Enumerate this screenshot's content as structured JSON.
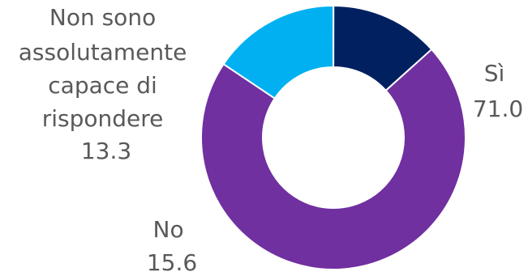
{
  "chart_data": {
    "type": "pie",
    "donut": true,
    "title": "",
    "slices": [
      {
        "label": "Sì",
        "value": 71.0,
        "value_label": "71.0",
        "color": "#7030A0"
      },
      {
        "label": "No",
        "value": 15.6,
        "value_label": "15.6",
        "color": "#00B0F0"
      },
      {
        "label_lines": [
          "Non sono",
          "assolutamente",
          "capace di",
          "rispondere"
        ],
        "value": 13.3,
        "value_label": "13.3",
        "color": "#002060"
      }
    ],
    "legend": "none",
    "start_angle_deg": 48,
    "direction": "clockwise"
  }
}
